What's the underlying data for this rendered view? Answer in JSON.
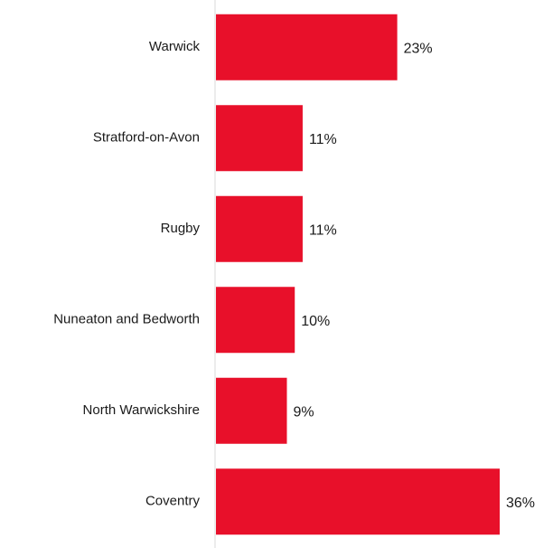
{
  "chart_data": {
    "type": "bar",
    "orientation": "horizontal",
    "categories": [
      "Warwick",
      "Stratford-on-Avon",
      "Rugby",
      "Nuneaton and Bedworth",
      "North Warwickshire",
      "Coventry"
    ],
    "values": [
      23,
      11,
      11,
      10,
      9,
      36
    ],
    "value_labels": [
      "23%",
      "11%",
      "11%",
      "10%",
      "9%",
      "36%"
    ],
    "unit": "%",
    "xlim": [
      0,
      36
    ],
    "grid": false,
    "legend": "none",
    "bar_color": "#e8102a",
    "axis_line_color": "#d9d9d9"
  }
}
